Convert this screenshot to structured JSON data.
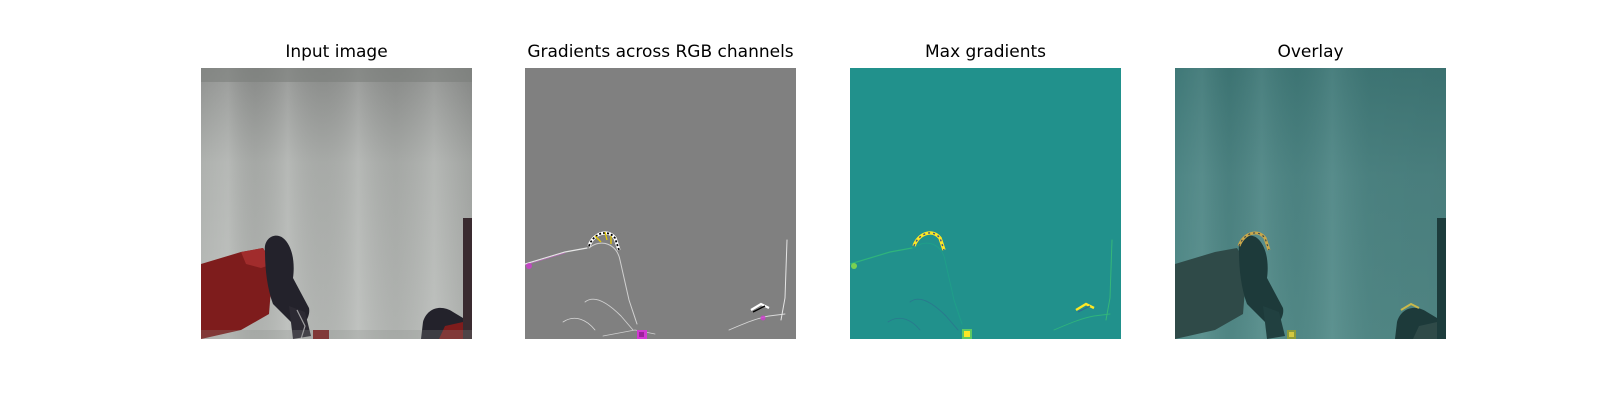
{
  "figure": {
    "panels": [
      {
        "title": "Input image"
      },
      {
        "title": "Gradients across RGB channels"
      },
      {
        "title": "Max gradients"
      },
      {
        "title": "Overlay"
      }
    ]
  },
  "colors": {
    "page_background": "#ffffff",
    "curtain_gray": "#a3a6a4",
    "robot_red": "#7e1c1c",
    "robot_dark": "#23222b",
    "gradient_gray": "#808080",
    "gradient_magenta": "#d13ad1",
    "viridis_teal": "#21918c",
    "viridis_yellow": "#fde725",
    "viridis_green": "#5ec962",
    "overlay_teal": "#4a807e"
  }
}
